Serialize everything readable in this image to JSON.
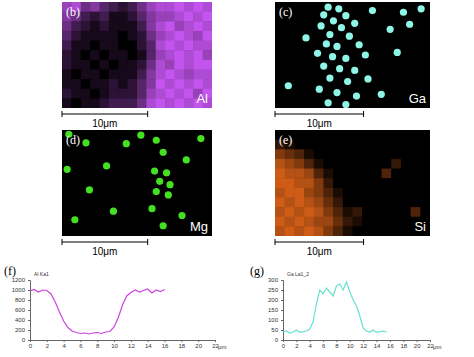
{
  "panels": [
    {
      "label": "(b)",
      "element": "Al",
      "color": "#c454ee",
      "scale_bar": {
        "value": 10,
        "label": "10μm"
      },
      "extent_um": [
        17.5,
        12.4
      ],
      "intensity_range": [
        0,
        9
      ],
      "intensity": [
        [
          7,
          8,
          5,
          6,
          4,
          3,
          2,
          3,
          5,
          7,
          8,
          8,
          9,
          8,
          9,
          8
        ],
        [
          6,
          5,
          3,
          2,
          3,
          1,
          1,
          2,
          4,
          6,
          7,
          7,
          8,
          9,
          8,
          9
        ],
        [
          5,
          3,
          2,
          1,
          2,
          1,
          1,
          1,
          3,
          6,
          8,
          9,
          7,
          8,
          9,
          8
        ],
        [
          4,
          2,
          1,
          1,
          1,
          1,
          0,
          1,
          2,
          5,
          7,
          8,
          9,
          8,
          7,
          9
        ],
        [
          3,
          1,
          1,
          0,
          1,
          1,
          0,
          0,
          2,
          4,
          8,
          9,
          8,
          9,
          8,
          8
        ],
        [
          2,
          1,
          0,
          1,
          0,
          1,
          1,
          0,
          1,
          4,
          7,
          8,
          9,
          8,
          9,
          7
        ],
        [
          2,
          1,
          1,
          0,
          1,
          0,
          1,
          1,
          2,
          5,
          8,
          7,
          9,
          8,
          9,
          9
        ],
        [
          1,
          0,
          1,
          1,
          0,
          1,
          1,
          1,
          3,
          6,
          8,
          9,
          8,
          7,
          8,
          8
        ],
        [
          1,
          1,
          0,
          1,
          1,
          2,
          1,
          2,
          4,
          6,
          9,
          8,
          9,
          8,
          9,
          8
        ],
        [
          2,
          1,
          1,
          0,
          1,
          2,
          2,
          2,
          4,
          7,
          8,
          9,
          8,
          9,
          7,
          9
        ],
        [
          1,
          0,
          1,
          1,
          2,
          3,
          3,
          3,
          5,
          8,
          9,
          8,
          9,
          8,
          9,
          8
        ]
      ]
    },
    {
      "label": "(c)",
      "element": "Ga",
      "color": "#8ff5e6",
      "scale_bar": {
        "value": 10,
        "label": "10μm"
      },
      "extent_um": [
        17.5,
        12.4
      ],
      "dots": [
        [
          6.0,
          0.6
        ],
        [
          7.2,
          0.8
        ],
        [
          5.5,
          1.5
        ],
        [
          8.0,
          1.6
        ],
        [
          6.6,
          2.2
        ],
        [
          11.0,
          1.0
        ],
        [
          14.5,
          1.2
        ],
        [
          16.5,
          0.8
        ],
        [
          5.2,
          2.8
        ],
        [
          7.5,
          3.0
        ],
        [
          9.0,
          2.5
        ],
        [
          6.2,
          3.8
        ],
        [
          8.4,
          4.0
        ],
        [
          13.0,
          3.2
        ],
        [
          15.2,
          2.6
        ],
        [
          3.5,
          4.2
        ],
        [
          5.8,
          4.9
        ],
        [
          7.0,
          5.2
        ],
        [
          9.5,
          5.0
        ],
        [
          4.8,
          6.0
        ],
        [
          6.5,
          6.4
        ],
        [
          8.0,
          6.6
        ],
        [
          10.2,
          6.2
        ],
        [
          13.8,
          5.9
        ],
        [
          5.5,
          7.5
        ],
        [
          7.3,
          7.8
        ],
        [
          9.0,
          8.0
        ],
        [
          6.2,
          8.9
        ],
        [
          8.2,
          9.3
        ],
        [
          10.5,
          9.0
        ],
        [
          1.5,
          9.8
        ],
        [
          5.0,
          10.2
        ],
        [
          7.0,
          10.6
        ],
        [
          9.2,
          11.0
        ],
        [
          12.0,
          10.8
        ],
        [
          6.0,
          11.8
        ],
        [
          8.0,
          12.0
        ]
      ]
    },
    {
      "label": "(d)",
      "element": "Mg",
      "color": "#44e022",
      "scale_bar": {
        "value": 10,
        "label": "10μm"
      },
      "extent_um": [
        17.5,
        12.4
      ],
      "dots": [
        [
          0.8,
          0.5
        ],
        [
          2.8,
          1.5
        ],
        [
          7.5,
          1.6
        ],
        [
          9.2,
          0.6
        ],
        [
          11.0,
          1.2
        ],
        [
          16.2,
          1.0
        ],
        [
          11.8,
          2.6
        ],
        [
          14.5,
          3.5
        ],
        [
          0.6,
          4.6
        ],
        [
          5.2,
          4.2
        ],
        [
          10.8,
          4.8
        ],
        [
          12.2,
          5.0
        ],
        [
          11.4,
          6.0
        ],
        [
          12.6,
          6.4
        ],
        [
          11.0,
          7.2
        ],
        [
          12.4,
          7.6
        ],
        [
          3.2,
          7.0
        ],
        [
          6.0,
          9.5
        ],
        [
          10.5,
          9.2
        ],
        [
          14.0,
          10.0
        ],
        [
          1.5,
          10.5
        ],
        [
          11.8,
          11.2
        ]
      ]
    },
    {
      "label": "(e)",
      "element": "Si",
      "color": "#e8681a",
      "scale_bar": {
        "value": 10,
        "label": "10μm"
      },
      "extent_um": [
        17.5,
        12.4
      ],
      "intensity_range": [
        0,
        9
      ],
      "intensity": [
        [
          0,
          0,
          0,
          0,
          0,
          0,
          0,
          0,
          0,
          0,
          0,
          0,
          0,
          0,
          0,
          0
        ],
        [
          2,
          1,
          0,
          0,
          0,
          0,
          0,
          0,
          0,
          0,
          0,
          0,
          0,
          0,
          0,
          0
        ],
        [
          5,
          4,
          3,
          1,
          0,
          0,
          0,
          0,
          0,
          0,
          0,
          0,
          0,
          0,
          0,
          0
        ],
        [
          7,
          6,
          5,
          3,
          1,
          0,
          0,
          0,
          0,
          0,
          0,
          0,
          2,
          0,
          0,
          0
        ],
        [
          8,
          7,
          7,
          6,
          3,
          1,
          0,
          0,
          0,
          0,
          0,
          3,
          0,
          0,
          0,
          0
        ],
        [
          8,
          8,
          7,
          7,
          5,
          2,
          0,
          0,
          0,
          0,
          0,
          0,
          0,
          0,
          0,
          0
        ],
        [
          7,
          8,
          8,
          6,
          5,
          3,
          1,
          0,
          0,
          0,
          0,
          0,
          0,
          0,
          0,
          0
        ],
        [
          8,
          7,
          8,
          7,
          6,
          4,
          2,
          0,
          0,
          0,
          0,
          0,
          0,
          0,
          0,
          0
        ],
        [
          7,
          8,
          7,
          8,
          7,
          5,
          3,
          1,
          2,
          0,
          0,
          0,
          0,
          0,
          3,
          0
        ],
        [
          8,
          7,
          8,
          7,
          6,
          6,
          4,
          2,
          1,
          0,
          0,
          0,
          0,
          0,
          0,
          0
        ],
        [
          7,
          8,
          7,
          8,
          7,
          5,
          3,
          1,
          0,
          0,
          0,
          0,
          0,
          0,
          0,
          0
        ]
      ]
    }
  ],
  "chart_data": [
    {
      "type": "line",
      "label": "(f)",
      "title": "Al Ka1",
      "x_label": "μm",
      "color": "#cc44dd",
      "x": [
        0,
        0.5,
        1,
        1.5,
        2,
        2.5,
        3,
        3.5,
        4,
        4.5,
        5,
        5.5,
        6,
        6.5,
        7,
        7.5,
        8,
        8.5,
        9,
        9.5,
        10,
        10.5,
        11,
        11.5,
        12,
        12.5,
        13,
        13.5,
        14,
        14.5,
        15,
        15.5,
        16
      ],
      "values": [
        980,
        1010,
        960,
        1000,
        990,
        920,
        760,
        560,
        380,
        250,
        180,
        150,
        130,
        140,
        120,
        140,
        150,
        130,
        160,
        170,
        260,
        450,
        700,
        880,
        950,
        1000,
        960,
        990,
        1020,
        940,
        1000,
        970,
        1010
      ],
      "xlim": [
        0,
        22
      ],
      "xticks": [
        0,
        2,
        4,
        6,
        8,
        10,
        12,
        14,
        16,
        18,
        20,
        22
      ],
      "ylim": [
        0,
        1200
      ],
      "yticks": [
        0,
        200,
        400,
        600,
        800,
        1000,
        1200
      ]
    },
    {
      "type": "line",
      "label": "(g)",
      "title": "Ga La1_2",
      "x_label": "μm",
      "color": "#66e0d0",
      "x": [
        0,
        0.5,
        1,
        1.5,
        2,
        2.5,
        3,
        3.5,
        4,
        4.5,
        5,
        5.5,
        6,
        6.5,
        7,
        7.5,
        8,
        8.5,
        9,
        9.5,
        10,
        10.5,
        11,
        11.5,
        12,
        12.5,
        13,
        13.5,
        14,
        14.5,
        15,
        15.5
      ],
      "values": [
        40,
        45,
        35,
        40,
        50,
        38,
        42,
        45,
        55,
        90,
        180,
        250,
        230,
        260,
        240,
        220,
        270,
        280,
        250,
        290,
        240,
        200,
        170,
        120,
        60,
        45,
        40,
        50,
        38,
        42,
        45,
        40
      ],
      "xlim": [
        0,
        22
      ],
      "xticks": [
        0,
        2,
        4,
        6,
        8,
        10,
        12,
        14,
        16,
        18,
        20,
        22
      ],
      "ylim": [
        0,
        300
      ],
      "yticks": [
        0,
        50,
        100,
        150,
        200,
        250,
        300
      ]
    }
  ]
}
